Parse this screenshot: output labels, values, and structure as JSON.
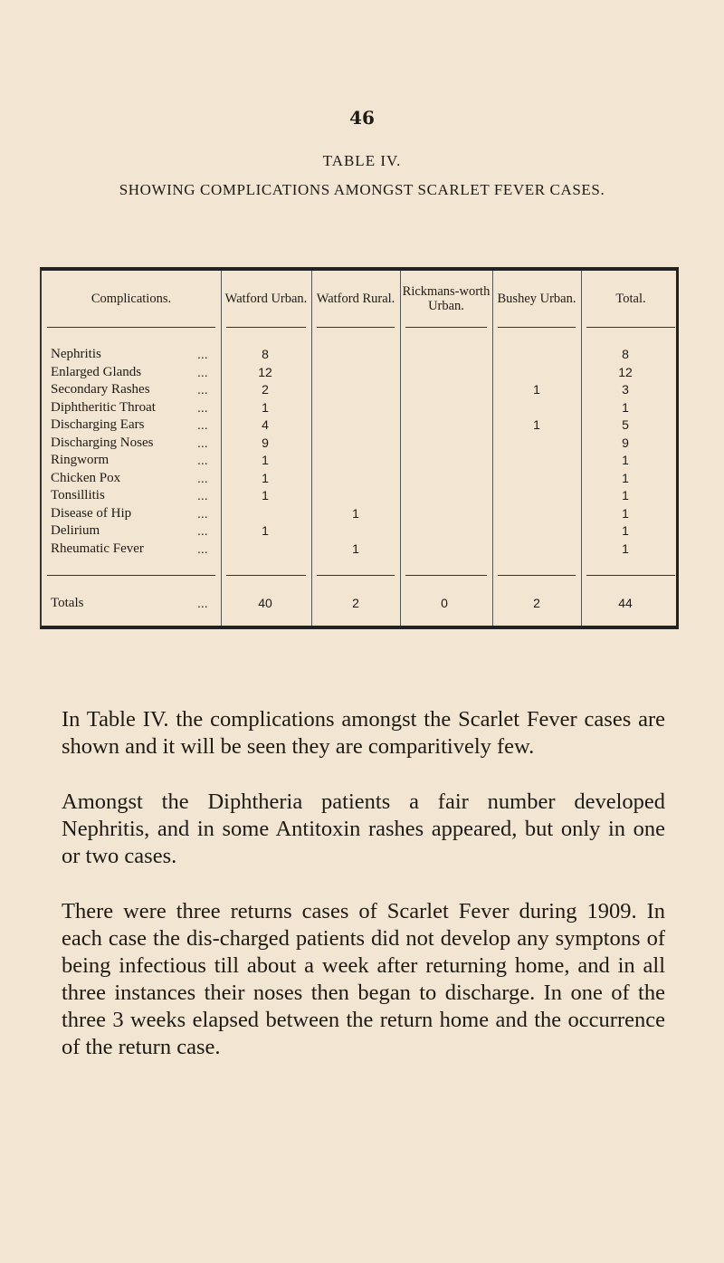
{
  "page_number": "46",
  "title": "TABLE IV.",
  "subtitle": "SHOWING COMPLICATIONS AMONGST SCARLET FEVER CASES.",
  "table": {
    "headers": [
      "Complications.",
      "Watford Urban.",
      "Watford Rural.",
      "Rickmans-worth Urban.",
      "Bushey Urban.",
      "Total."
    ],
    "rows": [
      {
        "label": "Nephritis",
        "values": [
          "8",
          "",
          "",
          "",
          "8"
        ]
      },
      {
        "label": "Enlarged Glands",
        "values": [
          "12",
          "",
          "",
          "",
          "12"
        ]
      },
      {
        "label": "Secondary Rashes",
        "values": [
          "2",
          "",
          "",
          "1",
          "3"
        ]
      },
      {
        "label": "Diphtheritic Throat",
        "values": [
          "1",
          "",
          "",
          "",
          "1"
        ]
      },
      {
        "label": "Discharging Ears",
        "values": [
          "4",
          "",
          "",
          "1",
          "5"
        ]
      },
      {
        "label": "Discharging Noses",
        "values": [
          "9",
          "",
          "",
          "",
          "9"
        ]
      },
      {
        "label": "Ringworm",
        "values": [
          "1",
          "",
          "",
          "",
          "1"
        ]
      },
      {
        "label": "Chicken Pox",
        "values": [
          "1",
          "",
          "",
          "",
          "1"
        ]
      },
      {
        "label": "Tonsillitis",
        "values": [
          "1",
          "",
          "",
          "",
          "1"
        ]
      },
      {
        "label": "Disease of Hip",
        "values": [
          "",
          "1",
          "",
          "",
          "1"
        ]
      },
      {
        "label": "Delirium",
        "values": [
          "1",
          "",
          "",
          "",
          "1"
        ]
      },
      {
        "label": "Rheumatic Fever",
        "values": [
          "",
          "1",
          "",
          "",
          "1"
        ]
      }
    ],
    "totals": {
      "label": "Totals",
      "values": [
        "40",
        "2",
        "0",
        "2",
        "44"
      ]
    },
    "dots": "..."
  },
  "paragraphs": [
    "In Table IV. the complications amongst the Scarlet Fever cases are shown and it will be seen they are comparitively few.",
    "Amongst the Diphtheria patients a fair number developed Nephritis, and in some Antitoxin rashes appeared, but only in one or two cases.",
    "There were three returns cases of Scarlet Fever during 1909. In each case the dis-charged patients did not develop any symptons of being infectious till about a week after returning home, and in all three instances their noses then began to discharge. In one of the three 3 weeks elapsed between the return home and the occurrence of the return case."
  ]
}
